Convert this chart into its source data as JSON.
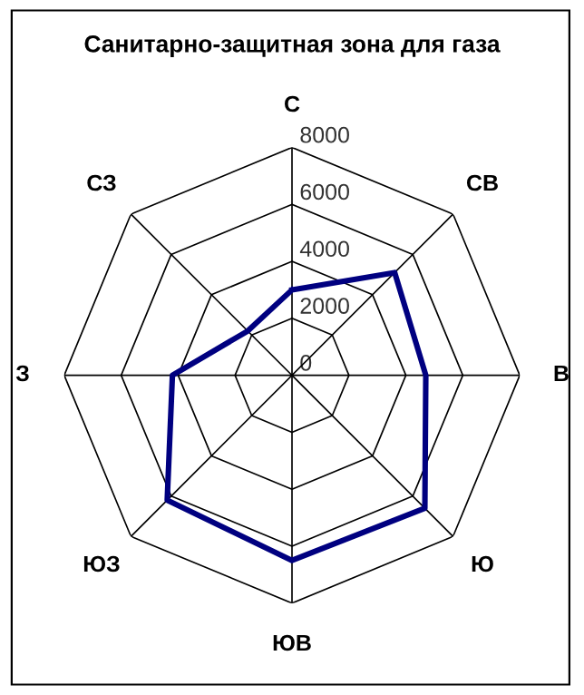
{
  "chart_data": {
    "type": "radar",
    "title": "Санитарно-защитная зона для газа",
    "categories": [
      "С",
      "СВ",
      "В",
      "Ю",
      "ЮВ",
      "ЮЗ",
      "З",
      "СЗ"
    ],
    "series": [
      {
        "color": "#000080",
        "values": [
          3000,
          5100,
          4700,
          6600,
          6500,
          6200,
          4200,
          2200
        ]
      }
    ],
    "ylim": [
      0,
      8000
    ],
    "yticks": [
      0,
      2000,
      4000,
      6000,
      8000
    ],
    "grid": true,
    "legend": false
  }
}
